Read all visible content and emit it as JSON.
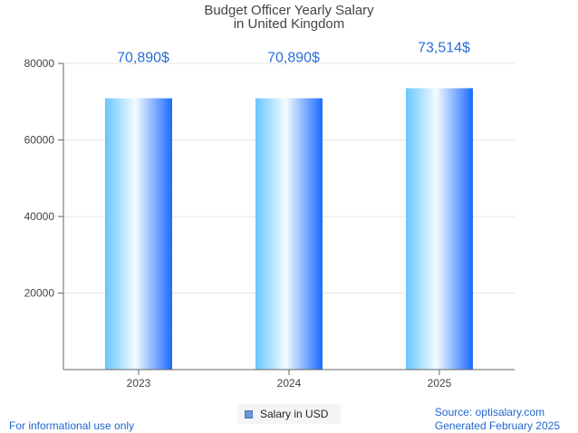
{
  "chart_data": {
    "type": "bar",
    "title_line1": "Budget Officer Yearly Salary",
    "title_line2": "in United Kingdom",
    "categories": [
      "2023",
      "2024",
      "2025"
    ],
    "series": [
      {
        "name": "Salary in USD",
        "values": [
          70890,
          70890,
          73514
        ]
      }
    ],
    "value_labels": [
      "70,890$",
      "70,890$",
      "73,514$"
    ],
    "y_ticks": [
      "20000",
      "40000",
      "60000",
      "80000"
    ],
    "ylim": [
      0,
      80000
    ],
    "grid": true,
    "legend_position": "bottom-center",
    "colors": {
      "bar_light": "#e8f6ff",
      "bar_mid": "#66c6ff",
      "bar_dark": "#1a6bff",
      "label": "#2a6fd6",
      "legend_swatch": "#6a97d8"
    }
  },
  "footer": {
    "left": "For informational use only",
    "source": "Source: optisalary.com",
    "generated": "Generated February 2025"
  }
}
